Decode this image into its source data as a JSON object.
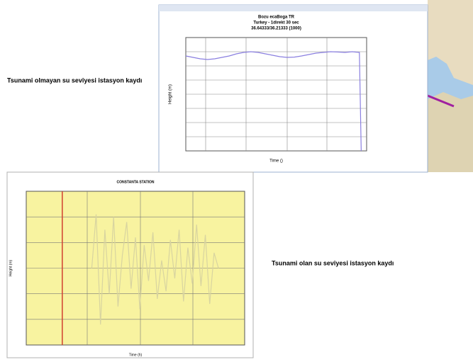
{
  "captions": [
    "Tsunami olmayan su seviyesi istasyon kaydı",
    "Tsunami olan su seviyesi istasyon kaydı"
  ],
  "chart_data": [
    {
      "type": "line",
      "title": [
        "Bozu ecaBoga TR",
        "Turkey - 1direkt 30 sec",
        "36.64333/36.21333 (1000)"
      ],
      "x_label": "Time ()",
      "y_label": "Height (m)",
      "color": "#8a7fe0",
      "xlim": [
        0,
        100
      ],
      "ylim": [
        0,
        8
      ],
      "x": [
        0,
        4,
        8,
        12,
        16,
        20,
        24,
        28,
        32,
        36,
        40,
        44,
        48,
        52,
        56,
        60,
        64,
        68,
        72,
        76,
        80,
        84,
        88,
        92,
        96,
        97
      ],
      "values": [
        6.7,
        6.6,
        6.5,
        6.45,
        6.5,
        6.6,
        6.7,
        6.85,
        6.95,
        7.0,
        6.95,
        6.85,
        6.75,
        6.65,
        6.6,
        6.62,
        6.7,
        6.8,
        6.9,
        6.95,
        7.0,
        6.98,
        6.95,
        7.0,
        6.95,
        0
      ]
    },
    {
      "type": "line",
      "title": [
        "CONSTANTA STATION"
      ],
      "x_label": "Time (h)",
      "y_label": "Height (m)",
      "color": "#d8d4a0",
      "vline_x": 16.5,
      "vline_color": "#d04030",
      "xlim": [
        0,
        100
      ],
      "ylim": [
        -3,
        3
      ],
      "x": [
        30,
        32,
        34,
        36,
        38,
        40,
        42,
        44,
        46,
        48,
        50,
        52,
        54,
        56,
        58,
        60,
        62,
        64,
        66,
        68,
        70,
        72,
        74,
        76,
        78,
        80,
        82,
        84,
        86,
        88
      ],
      "values": [
        0,
        2.1,
        -2.2,
        1.5,
        -1,
        2,
        -1.5,
        0.5,
        1.8,
        -0.8,
        1.2,
        -1.6,
        0.9,
        -0.5,
        1.4,
        -1.2,
        0.3,
        -0.9,
        1.1,
        -0.4,
        1.5,
        -1.3,
        0.8,
        -0.6,
        1.7,
        -0.7,
        1.3,
        -1.4,
        0.6,
        0
      ]
    }
  ]
}
